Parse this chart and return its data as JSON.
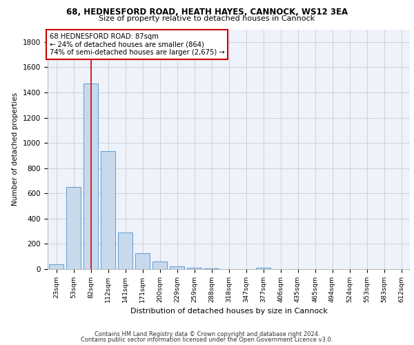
{
  "title1": "68, HEDNESFORD ROAD, HEATH HAYES, CANNOCK, WS12 3EA",
  "title2": "Size of property relative to detached houses in Cannock",
  "xlabel": "Distribution of detached houses by size in Cannock",
  "ylabel": "Number of detached properties",
  "bar_labels": [
    "23sqm",
    "53sqm",
    "82sqm",
    "112sqm",
    "141sqm",
    "171sqm",
    "200sqm",
    "229sqm",
    "259sqm",
    "288sqm",
    "318sqm",
    "347sqm",
    "377sqm",
    "406sqm",
    "435sqm",
    "465sqm",
    "494sqm",
    "524sqm",
    "553sqm",
    "583sqm",
    "612sqm"
  ],
  "bar_values": [
    37,
    650,
    1470,
    935,
    290,
    125,
    62,
    22,
    10,
    3,
    2,
    1,
    12,
    0,
    0,
    0,
    0,
    0,
    0,
    0,
    0
  ],
  "bar_color": "#c9d9ec",
  "bar_edge_color": "#5b9bd5",
  "highlight_bar_index": 2,
  "highlight_line_color": "#cc0000",
  "annotation_text": "68 HEDNESFORD ROAD: 87sqm\n← 24% of detached houses are smaller (864)\n74% of semi-detached houses are larger (2,675) →",
  "annotation_box_color": "#ffffff",
  "annotation_box_edge_color": "#cc0000",
  "ylim": [
    0,
    1900
  ],
  "yticks": [
    0,
    200,
    400,
    600,
    800,
    1000,
    1200,
    1400,
    1600,
    1800
  ],
  "grid_color": "#cccccc",
  "bg_color": "#eef2fa",
  "footer1": "Contains HM Land Registry data © Crown copyright and database right 2024.",
  "footer2": "Contains public sector information licensed under the Open Government Licence v3.0."
}
